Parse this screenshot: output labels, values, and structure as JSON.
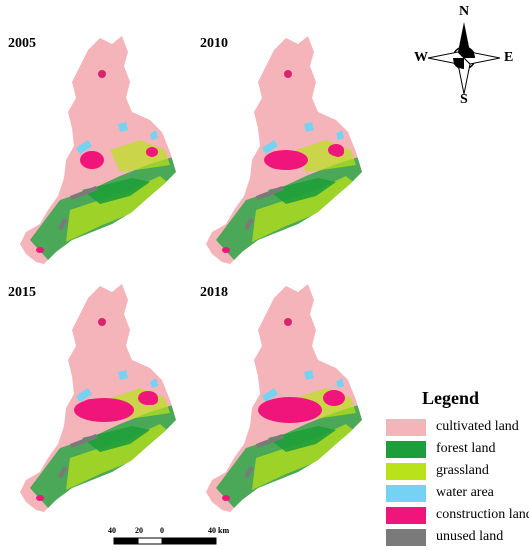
{
  "maps": [
    {
      "year": "2005"
    },
    {
      "year": "2010"
    },
    {
      "year": "2015"
    },
    {
      "year": "2018"
    }
  ],
  "compass": {
    "n": "N",
    "s": "S",
    "e": "E",
    "w": "W"
  },
  "legend": {
    "title": "Legend",
    "items": [
      {
        "label": "cultivated land",
        "color": "#f4b4b9"
      },
      {
        "label": "forest land",
        "color": "#1e9e3a"
      },
      {
        "label": "grassland",
        "color": "#b9e21a"
      },
      {
        "label": "water area",
        "color": "#74d2f2"
      },
      {
        "label": "construction land",
        "color": "#f0157a"
      },
      {
        "label": "unused land",
        "color": "#7a7a7a"
      }
    ]
  },
  "scale": {
    "labels": [
      "40",
      "20",
      "0",
      "40 km"
    ]
  }
}
